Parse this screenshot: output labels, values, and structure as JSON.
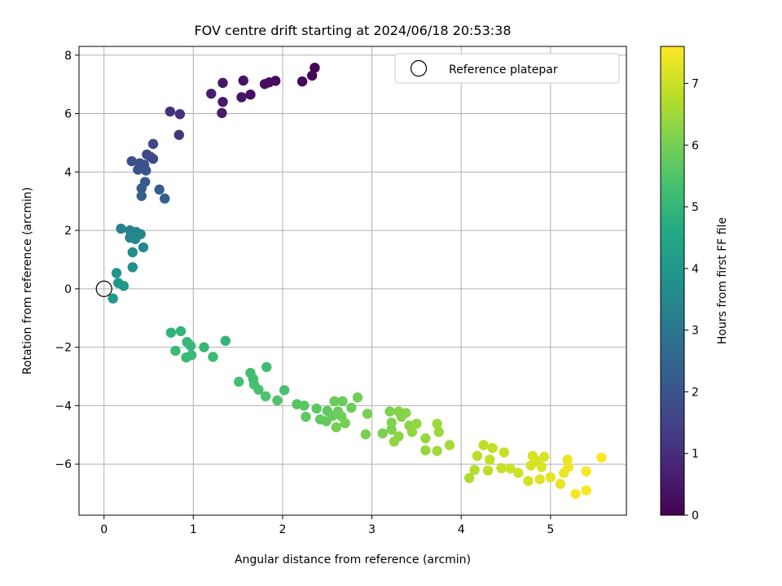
{
  "chart_data": {
    "type": "scatter",
    "title": "FOV centre drift starting at 2024/06/18 20:53:38",
    "xlabel": "Angular distance from reference (arcmin)",
    "ylabel": "Rotation from reference (arcmin)",
    "xlim": [
      -0.28,
      5.85
    ],
    "ylim": [
      -7.75,
      8.3
    ],
    "xticks": [
      0,
      1,
      2,
      3,
      4,
      5
    ],
    "yticks": [
      -6,
      -4,
      -2,
      0,
      2,
      4,
      6,
      8
    ],
    "grid": true,
    "colorbar": {
      "label": "Hours from first FF file",
      "range": [
        0,
        7.6
      ],
      "ticks": [
        0,
        1,
        2,
        3,
        4,
        5,
        6,
        7
      ],
      "colormap": "viridis"
    },
    "legend": {
      "position": "top-right",
      "entries": [
        {
          "label": "Reference platepar",
          "marker": "open-circle"
        }
      ]
    },
    "reference_point": {
      "x": 0,
      "y": 0
    },
    "points": [
      {
        "x": 2.36,
        "y": 7.57,
        "t": 0.05
      },
      {
        "x": 2.33,
        "y": 7.3,
        "t": 0.1
      },
      {
        "x": 2.22,
        "y": 7.1,
        "t": 0.15
      },
      {
        "x": 1.92,
        "y": 7.12,
        "t": 0.2
      },
      {
        "x": 1.85,
        "y": 7.07,
        "t": 0.25
      },
      {
        "x": 1.8,
        "y": 7.01,
        "t": 0.3
      },
      {
        "x": 1.64,
        "y": 6.65,
        "t": 0.35
      },
      {
        "x": 1.56,
        "y": 7.13,
        "t": 0.4
      },
      {
        "x": 1.54,
        "y": 6.56,
        "t": 0.45
      },
      {
        "x": 1.33,
        "y": 7.05,
        "t": 0.5
      },
      {
        "x": 1.33,
        "y": 6.4,
        "t": 0.55
      },
      {
        "x": 1.32,
        "y": 6.02,
        "t": 0.6
      },
      {
        "x": 1.2,
        "y": 6.68,
        "t": 0.65
      },
      {
        "x": 0.74,
        "y": 6.07,
        "t": 1.05
      },
      {
        "x": 0.85,
        "y": 5.98,
        "t": 1.1
      },
      {
        "x": 0.84,
        "y": 5.27,
        "t": 1.15
      },
      {
        "x": 0.55,
        "y": 4.96,
        "t": 1.6
      },
      {
        "x": 0.48,
        "y": 4.6,
        "t": 1.65
      },
      {
        "x": 0.55,
        "y": 4.45,
        "t": 1.7
      },
      {
        "x": 0.52,
        "y": 4.52,
        "t": 1.75
      },
      {
        "x": 0.31,
        "y": 4.37,
        "t": 1.8
      },
      {
        "x": 0.4,
        "y": 4.3,
        "t": 1.85
      },
      {
        "x": 0.45,
        "y": 4.25,
        "t": 1.9
      },
      {
        "x": 0.38,
        "y": 4.08,
        "t": 1.95
      },
      {
        "x": 0.47,
        "y": 4.05,
        "t": 2.0
      },
      {
        "x": 0.46,
        "y": 3.66,
        "t": 2.1
      },
      {
        "x": 0.42,
        "y": 3.44,
        "t": 2.2
      },
      {
        "x": 0.62,
        "y": 3.4,
        "t": 2.2
      },
      {
        "x": 0.42,
        "y": 3.18,
        "t": 2.3
      },
      {
        "x": 0.68,
        "y": 3.09,
        "t": 2.3
      },
      {
        "x": 0.19,
        "y": 2.06,
        "t": 3.3
      },
      {
        "x": 0.29,
        "y": 2.0,
        "t": 3.35
      },
      {
        "x": 0.36,
        "y": 1.95,
        "t": 3.4
      },
      {
        "x": 0.41,
        "y": 1.87,
        "t": 3.45
      },
      {
        "x": 0.29,
        "y": 1.75,
        "t": 3.5
      },
      {
        "x": 0.35,
        "y": 1.7,
        "t": 3.55
      },
      {
        "x": 0.44,
        "y": 1.42,
        "t": 3.6
      },
      {
        "x": 0.32,
        "y": 1.25,
        "t": 3.7
      },
      {
        "x": 0.32,
        "y": 0.74,
        "t": 3.8
      },
      {
        "x": 0.14,
        "y": 0.54,
        "t": 3.9
      },
      {
        "x": 0.16,
        "y": 0.2,
        "t": 4.0
      },
      {
        "x": 0.22,
        "y": 0.1,
        "t": 4.05
      },
      {
        "x": 0.1,
        "y": -0.33,
        "t": 4.1
      },
      {
        "x": 0.75,
        "y": -1.5,
        "t": 4.9
      },
      {
        "x": 0.86,
        "y": -1.45,
        "t": 4.95
      },
      {
        "x": 1.36,
        "y": -1.78,
        "t": 5.0
      },
      {
        "x": 0.93,
        "y": -1.82,
        "t": 5.0
      },
      {
        "x": 0.97,
        "y": -1.95,
        "t": 5.05
      },
      {
        "x": 1.12,
        "y": -2.0,
        "t": 5.05
      },
      {
        "x": 0.8,
        "y": -2.12,
        "t": 5.1
      },
      {
        "x": 0.98,
        "y": -2.27,
        "t": 5.1
      },
      {
        "x": 0.92,
        "y": -2.35,
        "t": 5.15
      },
      {
        "x": 1.22,
        "y": -2.33,
        "t": 5.15
      },
      {
        "x": 1.82,
        "y": -2.68,
        "t": 5.2
      },
      {
        "x": 1.64,
        "y": -2.88,
        "t": 5.25
      },
      {
        "x": 1.67,
        "y": -3.08,
        "t": 5.3
      },
      {
        "x": 1.51,
        "y": -3.18,
        "t": 5.3
      },
      {
        "x": 1.68,
        "y": -3.27,
        "t": 5.35
      },
      {
        "x": 1.73,
        "y": -3.45,
        "t": 5.4
      },
      {
        "x": 2.02,
        "y": -3.47,
        "t": 5.4
      },
      {
        "x": 1.81,
        "y": -3.68,
        "t": 5.45
      },
      {
        "x": 1.94,
        "y": -3.82,
        "t": 5.5
      },
      {
        "x": 2.16,
        "y": -3.95,
        "t": 5.55
      },
      {
        "x": 2.24,
        "y": -4.0,
        "t": 5.6
      },
      {
        "x": 2.38,
        "y": -4.1,
        "t": 5.65
      },
      {
        "x": 2.5,
        "y": -4.18,
        "t": 5.7
      },
      {
        "x": 2.26,
        "y": -4.38,
        "t": 5.7
      },
      {
        "x": 2.42,
        "y": -4.47,
        "t": 5.75
      },
      {
        "x": 2.49,
        "y": -4.53,
        "t": 5.75
      },
      {
        "x": 2.56,
        "y": -4.35,
        "t": 5.8
      },
      {
        "x": 2.58,
        "y": -3.85,
        "t": 5.85
      },
      {
        "x": 2.67,
        "y": -3.85,
        "t": 5.85
      },
      {
        "x": 2.77,
        "y": -4.07,
        "t": 5.9
      },
      {
        "x": 2.84,
        "y": -3.72,
        "t": 5.95
      },
      {
        "x": 2.62,
        "y": -4.2,
        "t": 5.9
      },
      {
        "x": 2.66,
        "y": -4.37,
        "t": 5.95
      },
      {
        "x": 2.7,
        "y": -4.6,
        "t": 6.0
      },
      {
        "x": 2.6,
        "y": -4.74,
        "t": 6.0
      },
      {
        "x": 2.95,
        "y": -4.28,
        "t": 6.05
      },
      {
        "x": 2.93,
        "y": -4.98,
        "t": 6.05
      },
      {
        "x": 3.12,
        "y": -4.95,
        "t": 6.1
      },
      {
        "x": 3.2,
        "y": -4.2,
        "t": 6.1
      },
      {
        "x": 3.22,
        "y": -4.58,
        "t": 6.15
      },
      {
        "x": 3.22,
        "y": -4.82,
        "t": 6.15
      },
      {
        "x": 3.3,
        "y": -4.2,
        "t": 6.2
      },
      {
        "x": 3.33,
        "y": -4.38,
        "t": 6.2
      },
      {
        "x": 3.38,
        "y": -4.25,
        "t": 6.25
      },
      {
        "x": 3.42,
        "y": -4.68,
        "t": 6.25
      },
      {
        "x": 3.3,
        "y": -5.05,
        "t": 6.3
      },
      {
        "x": 3.25,
        "y": -5.23,
        "t": 6.3
      },
      {
        "x": 3.45,
        "y": -4.9,
        "t": 6.35
      },
      {
        "x": 3.5,
        "y": -4.62,
        "t": 6.35
      },
      {
        "x": 3.6,
        "y": -5.12,
        "t": 6.4
      },
      {
        "x": 3.6,
        "y": -5.53,
        "t": 6.4
      },
      {
        "x": 3.73,
        "y": -4.62,
        "t": 6.45
      },
      {
        "x": 3.75,
        "y": -4.9,
        "t": 6.45
      },
      {
        "x": 3.73,
        "y": -5.55,
        "t": 6.5
      },
      {
        "x": 3.87,
        "y": -5.35,
        "t": 6.55
      },
      {
        "x": 4.09,
        "y": -6.48,
        "t": 6.7
      },
      {
        "x": 4.15,
        "y": -6.2,
        "t": 6.75
      },
      {
        "x": 4.18,
        "y": -5.72,
        "t": 6.8
      },
      {
        "x": 4.25,
        "y": -5.35,
        "t": 6.85
      },
      {
        "x": 4.3,
        "y": -6.22,
        "t": 6.85
      },
      {
        "x": 4.32,
        "y": -5.85,
        "t": 6.9
      },
      {
        "x": 4.35,
        "y": -5.45,
        "t": 6.9
      },
      {
        "x": 4.45,
        "y": -6.14,
        "t": 6.95
      },
      {
        "x": 4.48,
        "y": -5.6,
        "t": 6.95
      },
      {
        "x": 4.55,
        "y": -6.15,
        "t": 7.0
      },
      {
        "x": 4.64,
        "y": -6.3,
        "t": 7.05
      },
      {
        "x": 4.75,
        "y": -6.58,
        "t": 7.1
      },
      {
        "x": 4.78,
        "y": -6.05,
        "t": 7.1
      },
      {
        "x": 4.8,
        "y": -5.72,
        "t": 7.15
      },
      {
        "x": 4.85,
        "y": -5.9,
        "t": 7.15
      },
      {
        "x": 4.9,
        "y": -6.1,
        "t": 7.2
      },
      {
        "x": 4.93,
        "y": -5.75,
        "t": 7.2
      },
      {
        "x": 4.88,
        "y": -6.52,
        "t": 7.25
      },
      {
        "x": 5.0,
        "y": -6.45,
        "t": 7.3
      },
      {
        "x": 5.11,
        "y": -6.68,
        "t": 7.35
      },
      {
        "x": 5.15,
        "y": -6.3,
        "t": 7.4
      },
      {
        "x": 5.19,
        "y": -5.85,
        "t": 7.4
      },
      {
        "x": 5.2,
        "y": -6.1,
        "t": 7.45
      },
      {
        "x": 5.28,
        "y": -7.02,
        "t": 7.5
      },
      {
        "x": 5.4,
        "y": -6.9,
        "t": 7.55
      },
      {
        "x": 5.4,
        "y": -6.25,
        "t": 7.55
      },
      {
        "x": 5.57,
        "y": -5.78,
        "t": 7.6
      }
    ]
  }
}
